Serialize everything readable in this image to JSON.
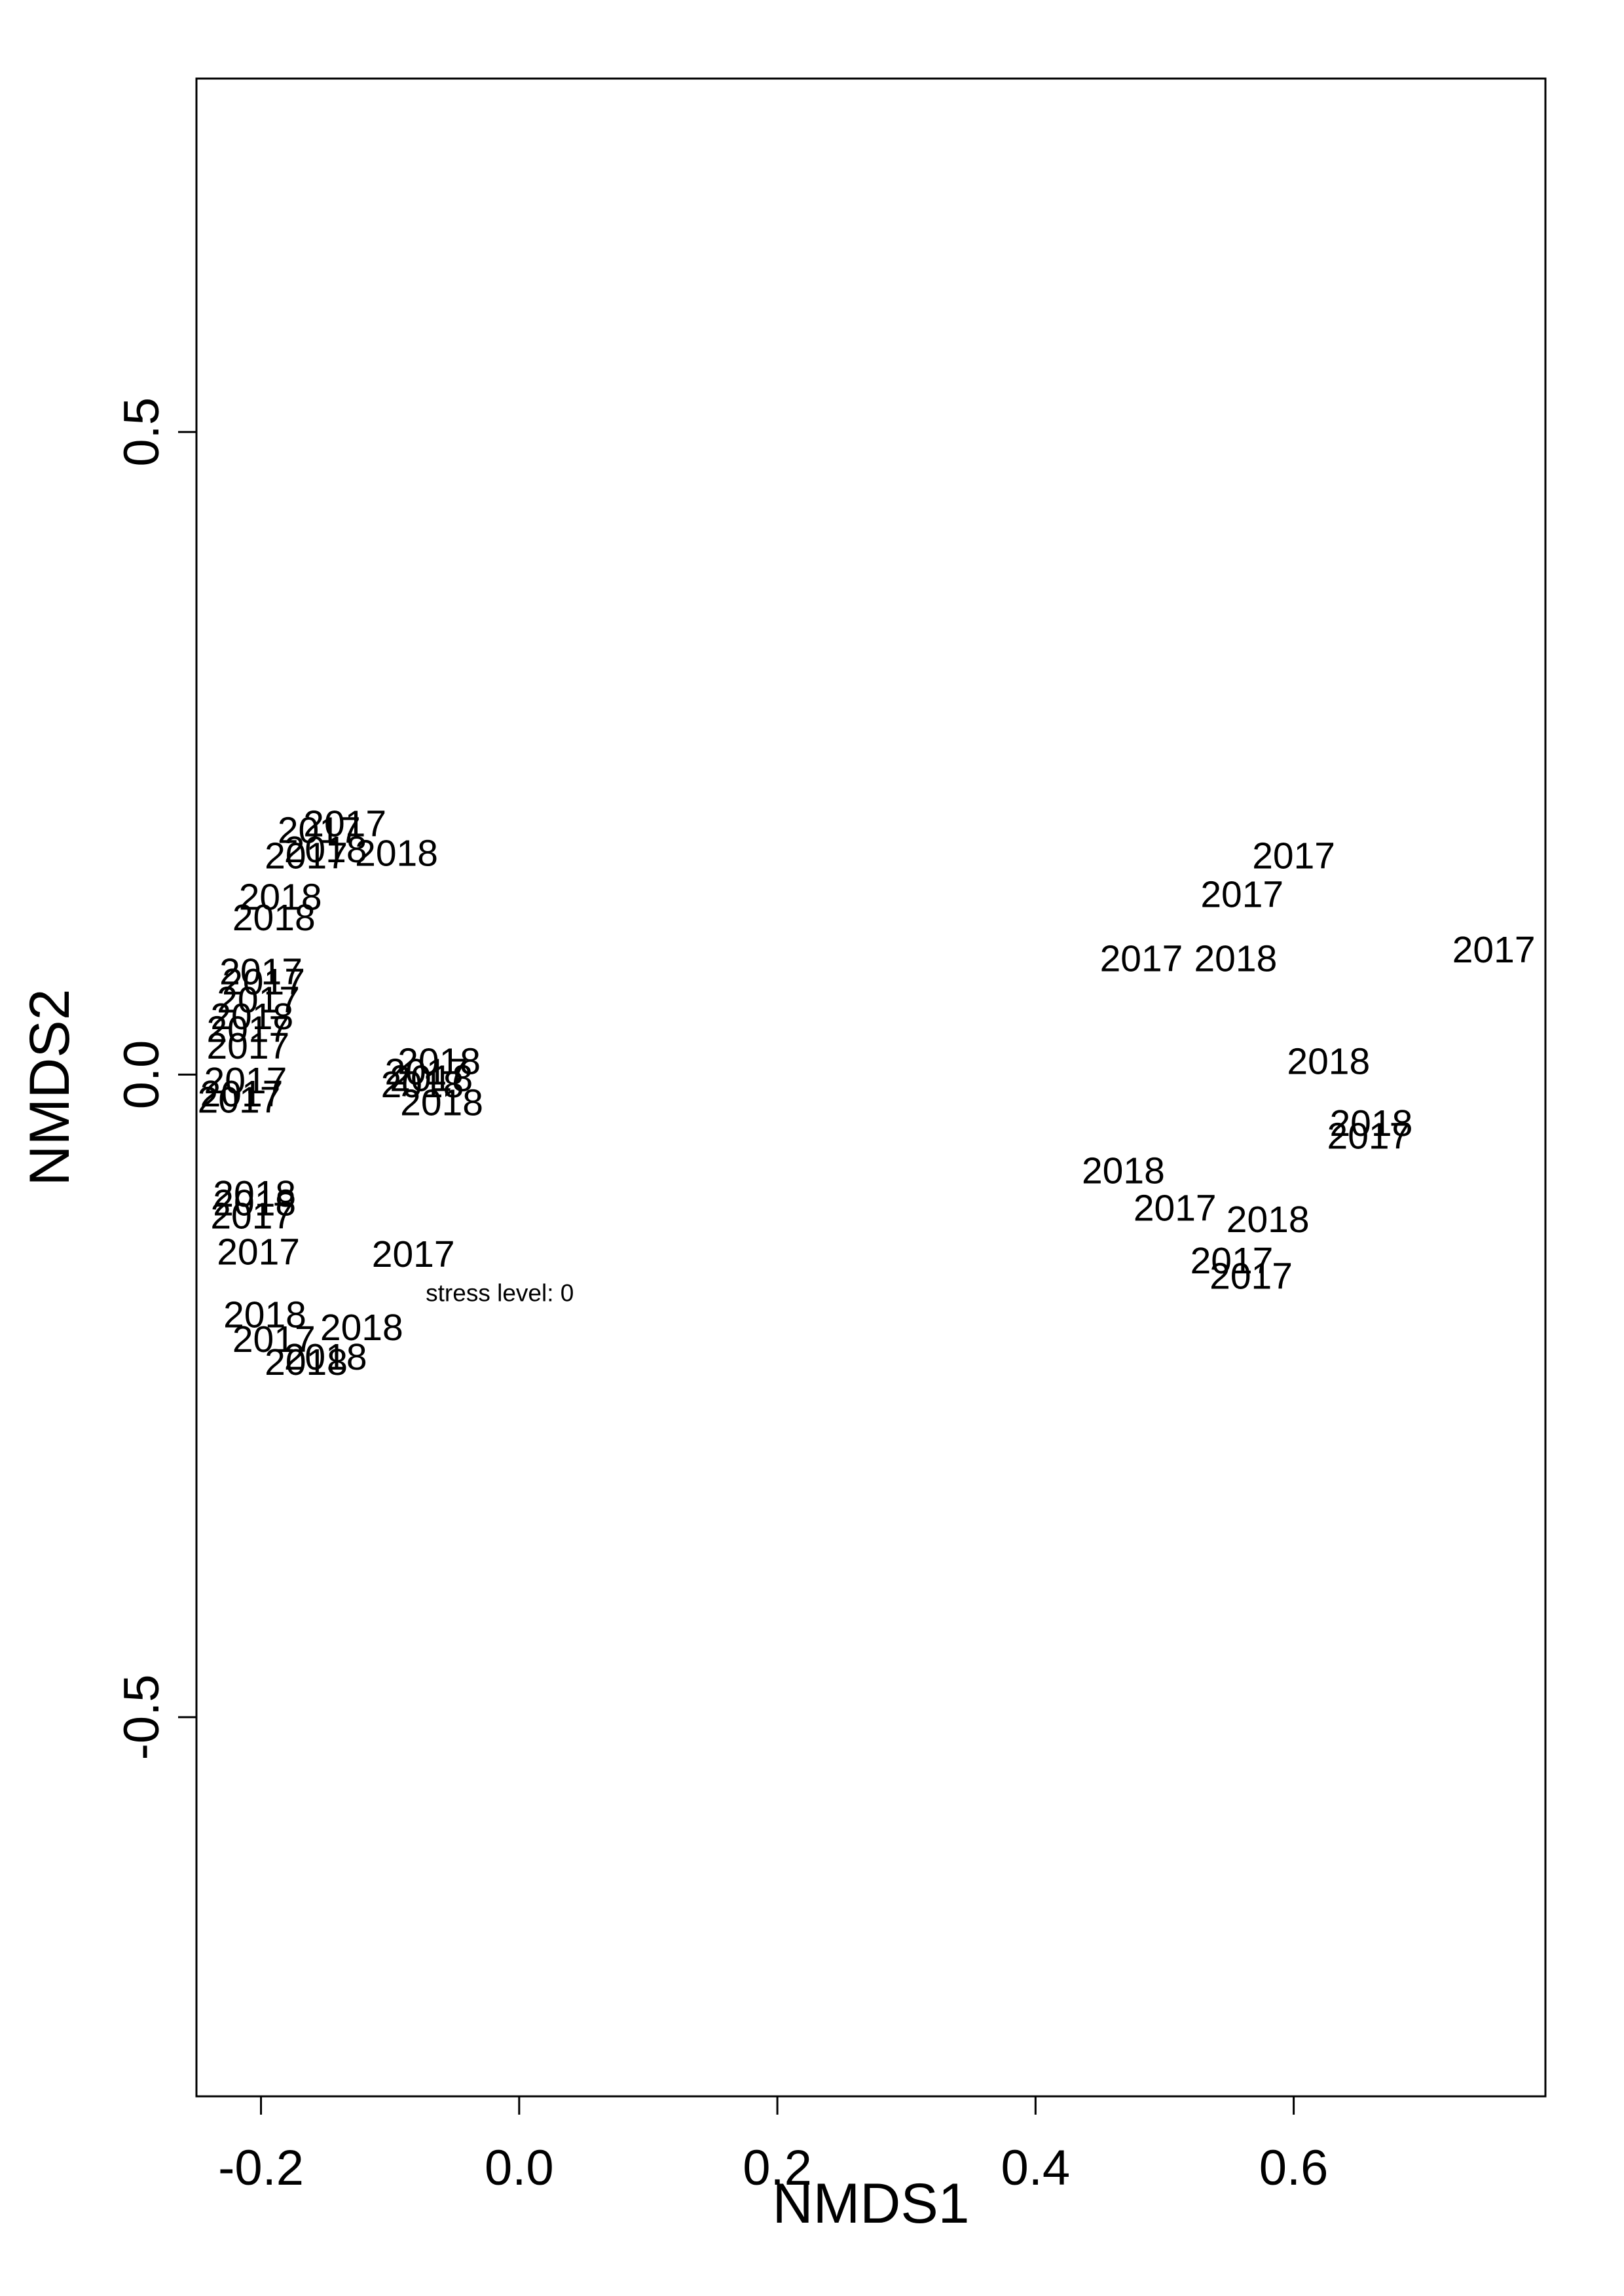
{
  "chart_data": {
    "type": "scatter",
    "title": "",
    "xlabel": "NMDS1",
    "ylabel": "NMDS2",
    "xlim": [
      -0.25,
      0.795
    ],
    "ylim": [
      -0.795,
      0.775
    ],
    "xticks": [
      {
        "value": -0.2,
        "label": "-0.2"
      },
      {
        "value": 0.0,
        "label": "0.0"
      },
      {
        "value": 0.2,
        "label": "0.2"
      },
      {
        "value": 0.4,
        "label": "0.4"
      },
      {
        "value": 0.6,
        "label": "0.6"
      }
    ],
    "yticks": [
      {
        "value": -0.5,
        "label": "-0.5"
      },
      {
        "value": 0.0,
        "label": "0.0"
      },
      {
        "value": 0.5,
        "label": "0.5"
      }
    ],
    "grid": false,
    "legend": "none",
    "annotation": {
      "text": "stress level: 0",
      "x": -0.015,
      "y": -0.17
    },
    "points": [
      {
        "x": -0.135,
        "y": 0.195,
        "label": "2017"
      },
      {
        "x": -0.155,
        "y": 0.19,
        "label": "2017"
      },
      {
        "x": -0.15,
        "y": 0.175,
        "label": "2018"
      },
      {
        "x": -0.165,
        "y": 0.17,
        "label": "2017"
      },
      {
        "x": -0.095,
        "y": 0.172,
        "label": "2018"
      },
      {
        "x": -0.185,
        "y": 0.138,
        "label": "2018"
      },
      {
        "x": -0.19,
        "y": 0.122,
        "label": "2018"
      },
      {
        "x": -0.2,
        "y": 0.08,
        "label": "2017"
      },
      {
        "x": -0.198,
        "y": 0.072,
        "label": "2017"
      },
      {
        "x": -0.202,
        "y": 0.058,
        "label": "2017"
      },
      {
        "x": -0.207,
        "y": 0.045,
        "label": "2018"
      },
      {
        "x": -0.21,
        "y": 0.035,
        "label": "2017"
      },
      {
        "x": -0.21,
        "y": 0.022,
        "label": "2017"
      },
      {
        "x": -0.212,
        "y": -0.005,
        "label": "2017"
      },
      {
        "x": -0.215,
        "y": -0.015,
        "label": "2017"
      },
      {
        "x": -0.217,
        "y": -0.02,
        "label": "2017"
      },
      {
        "x": -0.062,
        "y": 0.01,
        "label": "2018"
      },
      {
        "x": -0.072,
        "y": 0.002,
        "label": "2017"
      },
      {
        "x": -0.068,
        "y": -0.003,
        "label": "2018"
      },
      {
        "x": -0.075,
        "y": -0.008,
        "label": "2018"
      },
      {
        "x": -0.06,
        "y": -0.022,
        "label": "2018"
      },
      {
        "x": -0.205,
        "y": -0.093,
        "label": "2018"
      },
      {
        "x": -0.205,
        "y": -0.1,
        "label": "2018"
      },
      {
        "x": -0.207,
        "y": -0.11,
        "label": "2017"
      },
      {
        "x": -0.202,
        "y": -0.138,
        "label": "2017"
      },
      {
        "x": -0.082,
        "y": -0.14,
        "label": "2017"
      },
      {
        "x": -0.197,
        "y": -0.187,
        "label": "2018"
      },
      {
        "x": -0.122,
        "y": -0.197,
        "label": "2018"
      },
      {
        "x": -0.19,
        "y": -0.206,
        "label": "2017"
      },
      {
        "x": -0.15,
        "y": -0.22,
        "label": "2018"
      },
      {
        "x": -0.165,
        "y": -0.224,
        "label": "2018"
      },
      {
        "x": 0.6,
        "y": 0.17,
        "label": "2017"
      },
      {
        "x": 0.56,
        "y": 0.14,
        "label": "2017"
      },
      {
        "x": 0.482,
        "y": 0.09,
        "label": "2017"
      },
      {
        "x": 0.555,
        "y": 0.09,
        "label": "2018"
      },
      {
        "x": 0.755,
        "y": 0.097,
        "label": "2017"
      },
      {
        "x": 0.627,
        "y": 0.01,
        "label": "2018"
      },
      {
        "x": 0.66,
        "y": -0.038,
        "label": "2018"
      },
      {
        "x": 0.658,
        "y": -0.048,
        "label": "2017"
      },
      {
        "x": 0.468,
        "y": -0.075,
        "label": "2018"
      },
      {
        "x": 0.508,
        "y": -0.104,
        "label": "2017"
      },
      {
        "x": 0.58,
        "y": -0.113,
        "label": "2018"
      },
      {
        "x": 0.552,
        "y": -0.145,
        "label": "2017"
      },
      {
        "x": 0.567,
        "y": -0.157,
        "label": "2017"
      }
    ]
  }
}
